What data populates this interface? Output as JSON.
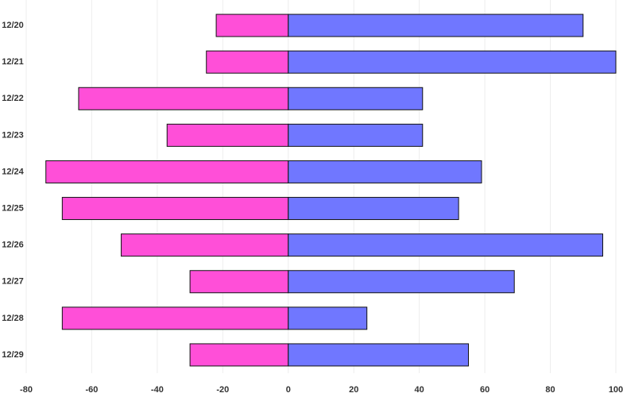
{
  "chart_data": {
    "type": "bar",
    "orientation": "horizontal",
    "categories": [
      "12/20",
      "12/21",
      "12/22",
      "12/23",
      "12/24",
      "12/25",
      "12/26",
      "12/27",
      "12/28",
      "12/29"
    ],
    "series": [
      {
        "color": "#ff4fd8",
        "values": [
          -22,
          -25,
          -64,
          -37,
          -74,
          -69,
          -51,
          -30,
          -69,
          -30
        ]
      },
      {
        "color": "#7077ff",
        "values": [
          90,
          100,
          41,
          41,
          59,
          52,
          96,
          69,
          24,
          55
        ]
      }
    ],
    "xlim": [
      -80,
      100
    ],
    "xticks": [
      -80,
      -60,
      -40,
      -20,
      0,
      20,
      40,
      60,
      80,
      100
    ],
    "grid": true
  }
}
